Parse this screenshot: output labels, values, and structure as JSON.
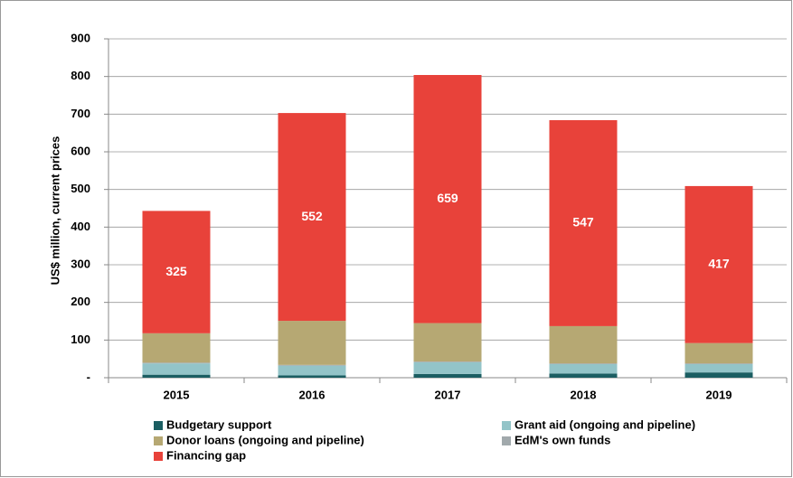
{
  "chart_data": {
    "type": "stacked_bar",
    "y_axis_label": "US$ million, current prices",
    "categories": [
      "2015",
      "2016",
      "2017",
      "2018",
      "2019"
    ],
    "series": [
      {
        "name": "Budgetary support",
        "color": "#1b5e62",
        "values": [
          8,
          6,
          10,
          11,
          14
        ]
      },
      {
        "name": "Grant aid (ongoing and pipeline)",
        "color": "#93c4c8",
        "values": [
          30,
          26,
          31,
          25,
          22
        ]
      },
      {
        "name": "EdM's own funds",
        "color": "#a1a9ac",
        "values": [
          2,
          2,
          2,
          2,
          2
        ]
      },
      {
        "name": "Donor loans (ongoing and pipeline)",
        "color": "#b6a873",
        "values": [
          78,
          117,
          102,
          99,
          54
        ]
      },
      {
        "name": "Financing gap",
        "color": "#e8423a",
        "values": [
          325,
          552,
          659,
          547,
          417
        ],
        "show_labels": true
      }
    ],
    "legend_order": [
      0,
      1,
      3,
      2,
      4
    ],
    "ylim": [
      0,
      900
    ],
    "yticks": [
      {
        "value": 0,
        "label": "-"
      },
      100,
      200,
      300,
      400,
      500,
      600,
      700,
      800,
      900
    ],
    "grid": true
  }
}
